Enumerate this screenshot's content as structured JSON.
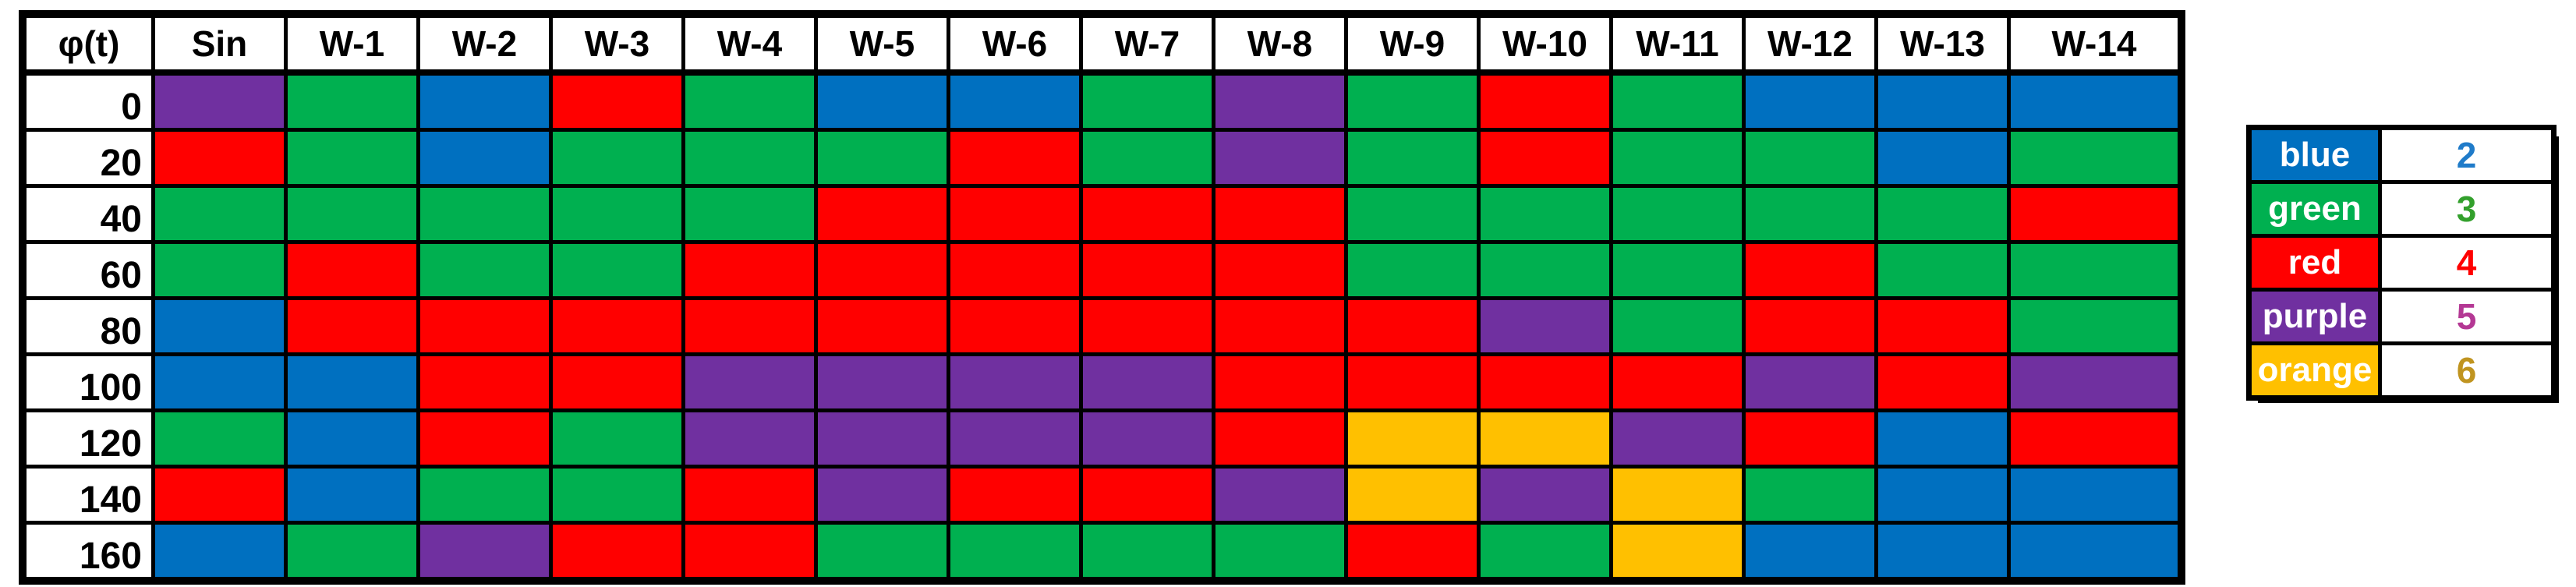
{
  "table": {
    "corner_label": "φ(t)",
    "columns": [
      "Sin",
      "W-1",
      "W-2",
      "W-3",
      "W-4",
      "W-5",
      "W-6",
      "W-7",
      "W-8",
      "W-9",
      "W-10",
      "W-11",
      "W-12",
      "W-13",
      "W-14"
    ],
    "rows": [
      {
        "phase": "0",
        "colors": [
          "purple",
          "green",
          "blue",
          "red",
          "green",
          "blue",
          "blue",
          "green",
          "purple",
          "green",
          "red",
          "green",
          "blue",
          "blue",
          "blue"
        ]
      },
      {
        "phase": "20",
        "colors": [
          "red",
          "green",
          "blue",
          "green",
          "green",
          "green",
          "red",
          "green",
          "purple",
          "green",
          "red",
          "green",
          "green",
          "blue",
          "green"
        ]
      },
      {
        "phase": "40",
        "colors": [
          "green",
          "green",
          "green",
          "green",
          "green",
          "red",
          "red",
          "red",
          "red",
          "green",
          "green",
          "green",
          "green",
          "green",
          "red"
        ]
      },
      {
        "phase": "60",
        "colors": [
          "green",
          "red",
          "green",
          "green",
          "red",
          "red",
          "red",
          "red",
          "red",
          "green",
          "green",
          "green",
          "red",
          "green",
          "green"
        ]
      },
      {
        "phase": "80",
        "colors": [
          "blue",
          "red",
          "red",
          "red",
          "red",
          "red",
          "red",
          "red",
          "red",
          "red",
          "purple",
          "green",
          "red",
          "red",
          "green"
        ]
      },
      {
        "phase": "100",
        "colors": [
          "blue",
          "blue",
          "red",
          "red",
          "purple",
          "purple",
          "purple",
          "purple",
          "red",
          "red",
          "red",
          "red",
          "purple",
          "red",
          "purple"
        ]
      },
      {
        "phase": "120",
        "colors": [
          "green",
          "blue",
          "red",
          "green",
          "purple",
          "purple",
          "purple",
          "purple",
          "red",
          "orange",
          "orange",
          "purple",
          "red",
          "blue",
          "red"
        ]
      },
      {
        "phase": "140",
        "colors": [
          "red",
          "blue",
          "green",
          "green",
          "red",
          "purple",
          "red",
          "red",
          "purple",
          "orange",
          "purple",
          "orange",
          "green",
          "blue",
          "blue"
        ]
      },
      {
        "phase": "160",
        "colors": [
          "blue",
          "green",
          "purple",
          "red",
          "red",
          "green",
          "green",
          "green",
          "green",
          "red",
          "green",
          "orange",
          "blue",
          "blue",
          "blue"
        ]
      }
    ]
  },
  "legend": {
    "entries": [
      {
        "label": "blue",
        "value": "2"
      },
      {
        "label": "green",
        "value": "3"
      },
      {
        "label": "red",
        "value": "4"
      },
      {
        "label": "purple",
        "value": "5"
      },
      {
        "label": "orange",
        "value": "6"
      }
    ]
  },
  "palette": {
    "blue": "#0070C0",
    "green": "#00B050",
    "red": "#FF0000",
    "purple": "#7030A0",
    "orange": "#FFC000"
  },
  "value_text_colors": {
    "blue": "#1F7BC9",
    "green": "#33A02C",
    "red": "#FF0000",
    "purple": "#B43894",
    "orange": "#C09420"
  },
  "chart_data": {
    "type": "heatmap",
    "title": "",
    "row_axis_label": "φ(t)",
    "rows": [
      "0",
      "20",
      "40",
      "60",
      "80",
      "100",
      "120",
      "140",
      "160"
    ],
    "columns": [
      "Sin",
      "W-1",
      "W-2",
      "W-3",
      "W-4",
      "W-5",
      "W-6",
      "W-7",
      "W-8",
      "W-9",
      "W-10",
      "W-11",
      "W-12",
      "W-13",
      "W-14"
    ],
    "values": [
      [
        5,
        3,
        2,
        4,
        3,
        2,
        2,
        3,
        5,
        3,
        4,
        3,
        2,
        2,
        2
      ],
      [
        4,
        3,
        2,
        3,
        3,
        3,
        4,
        3,
        5,
        3,
        4,
        3,
        3,
        2,
        3
      ],
      [
        3,
        3,
        3,
        3,
        3,
        4,
        4,
        4,
        4,
        3,
        3,
        3,
        3,
        3,
        4
      ],
      [
        3,
        4,
        3,
        3,
        4,
        4,
        4,
        4,
        4,
        3,
        3,
        3,
        4,
        3,
        3
      ],
      [
        2,
        4,
        4,
        4,
        4,
        4,
        4,
        4,
        4,
        4,
        5,
        3,
        4,
        4,
        3
      ],
      [
        2,
        2,
        4,
        4,
        5,
        5,
        5,
        5,
        4,
        4,
        4,
        4,
        5,
        4,
        5
      ],
      [
        3,
        2,
        4,
        3,
        5,
        5,
        5,
        5,
        4,
        6,
        6,
        5,
        4,
        2,
        4
      ],
      [
        4,
        2,
        3,
        3,
        4,
        5,
        4,
        4,
        5,
        6,
        5,
        6,
        3,
        2,
        2
      ],
      [
        2,
        3,
        5,
        4,
        4,
        3,
        3,
        3,
        3,
        4,
        3,
        6,
        2,
        2,
        2
      ]
    ],
    "color_scale": {
      "2": "blue",
      "3": "green",
      "4": "red",
      "5": "purple",
      "6": "orange"
    },
    "legend_entries": [
      [
        "blue",
        2
      ],
      [
        "green",
        3
      ],
      [
        "red",
        4
      ],
      [
        "purple",
        5
      ],
      [
        "orange",
        6
      ]
    ],
    "legend_position": "right",
    "grid": true
  }
}
